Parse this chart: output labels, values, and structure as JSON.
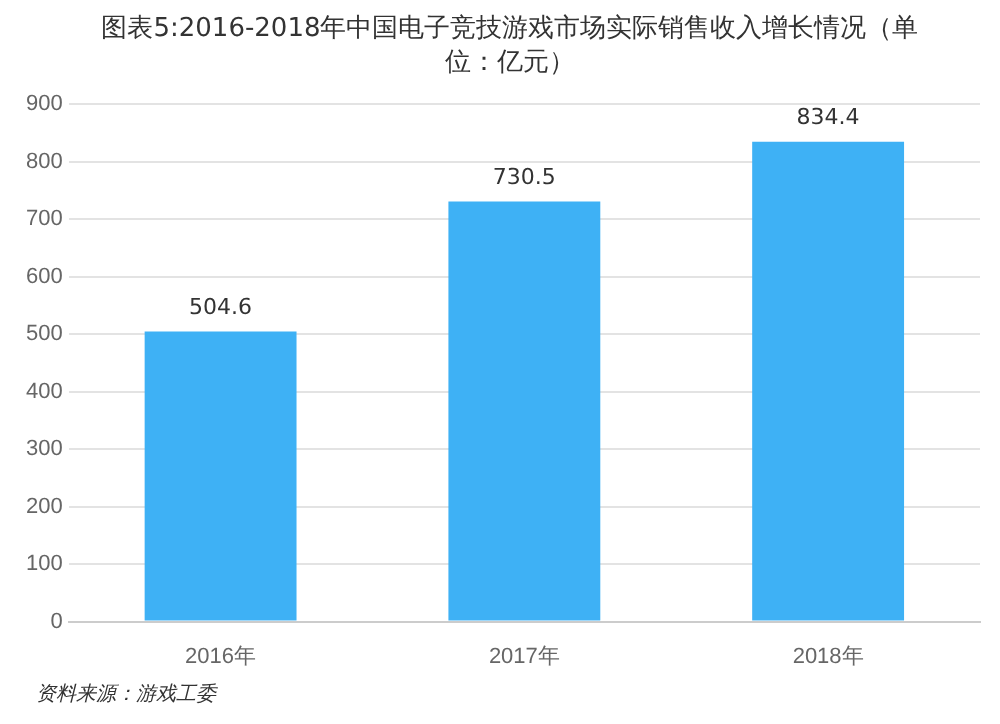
{
  "chart_data": {
    "type": "bar",
    "title": "图表5:2016-2018年中国电子竞技游戏市场实际销售收入增长情况（单位：亿元）",
    "categories": [
      "2016年",
      "2017年",
      "2018年"
    ],
    "values": [
      504.6,
      730.5,
      834.4
    ],
    "color": "#3eb1f5",
    "ylim": [
      0,
      900
    ],
    "yticks": [
      0,
      100,
      200,
      300,
      400,
      500,
      600,
      700,
      800,
      900
    ],
    "grid": "y",
    "data_labels": true,
    "annotations": [
      "资料来源：游戏工委"
    ]
  }
}
